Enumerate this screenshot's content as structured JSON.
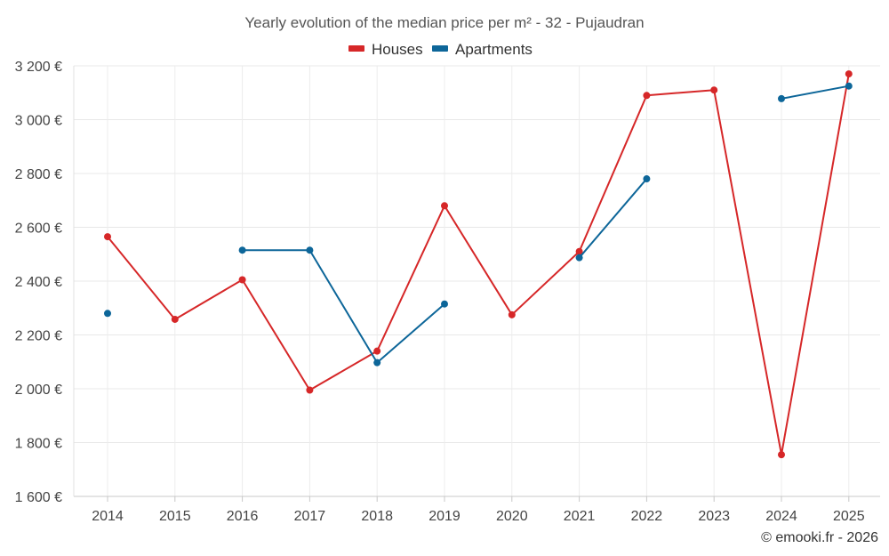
{
  "chart_data": {
    "type": "line",
    "title": "Yearly evolution of the median price per m² - 32 - Pujaudran",
    "xlabel": "",
    "ylabel": "",
    "categories": [
      "2014",
      "2015",
      "2016",
      "2017",
      "2018",
      "2019",
      "2020",
      "2021",
      "2022",
      "2023",
      "2024",
      "2025"
    ],
    "ylim": [
      1600,
      3200
    ],
    "yticks": [
      1600,
      1800,
      2000,
      2200,
      2400,
      2600,
      2800,
      3000,
      3200
    ],
    "ytick_labels": [
      "1 600 €",
      "1 800 €",
      "2 000 €",
      "2 200 €",
      "2 400 €",
      "2 600 €",
      "2 800 €",
      "3 000 €",
      "3 200 €"
    ],
    "grid": true,
    "legend_position": "top-center",
    "series": [
      {
        "name": "Houses",
        "color": "#d62728",
        "values": [
          2565,
          2258,
          2405,
          1995,
          2140,
          2680,
          2275,
          2510,
          3090,
          3110,
          1755,
          3170
        ]
      },
      {
        "name": "Apartments",
        "color": "#0d6699",
        "values": [
          2280,
          null,
          2515,
          2515,
          2097,
          2315,
          null,
          2487,
          2780,
          null,
          3078,
          3125
        ]
      }
    ],
    "credit": "© emooki.fr - 2026"
  }
}
